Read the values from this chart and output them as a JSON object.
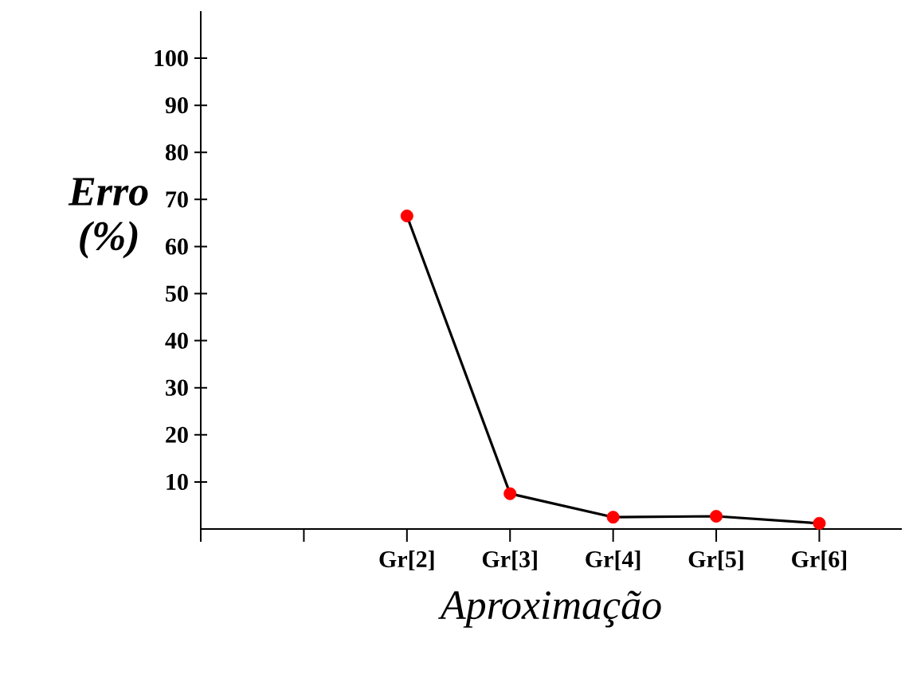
{
  "chart_data": {
    "type": "line",
    "xlabel": "Aproximação",
    "ylabel": "Erro (%)",
    "categories": [
      null,
      null,
      "Gr[2]",
      "Gr[3]",
      "Gr[4]",
      "Gr[5]",
      "Gr[6]"
    ],
    "series": [
      {
        "color": "#000000",
        "colors": [
          "#ff0000",
          "#ff0000",
          "#ff0000",
          "#ff0000",
          "#ff0000",
          "#ff0000",
          "#ff0000"
        ],
        "values": [
          null,
          null,
          66.5,
          7.5,
          2.5,
          2.7,
          1.2
        ]
      }
    ],
    "ylim": [
      0,
      110
    ],
    "yticks": [
      10,
      20,
      30,
      40,
      50,
      60,
      70,
      80,
      90,
      100
    ],
    "marker": "circle",
    "grid": false
  }
}
